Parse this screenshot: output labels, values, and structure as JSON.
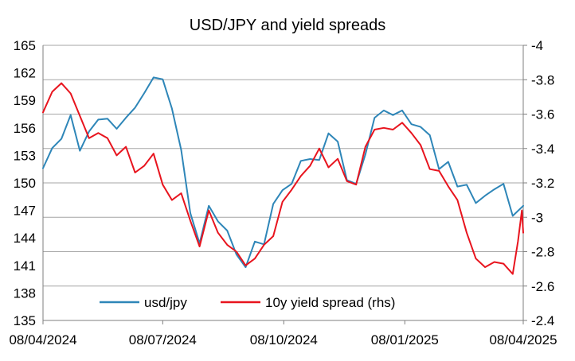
{
  "chart_data": {
    "type": "line",
    "title": "USD/JPY and yield spreads",
    "grid": true,
    "legend_position": "bottom-inside",
    "x_axis": {
      "ticks": [
        "08/04/2024",
        "08/07/2024",
        "08/10/2024",
        "08/01/2025",
        "08/04/2025"
      ],
      "range": [
        "08/04/2024",
        "08/04/2025"
      ]
    },
    "y_left": {
      "ticks": [
        "165",
        "162",
        "159",
        "156",
        "153",
        "150",
        "147",
        "144",
        "141",
        "138",
        "135"
      ],
      "range": [
        135,
        165
      ]
    },
    "y_right": {
      "ticks": [
        "-4",
        "-3.8",
        "-3.6",
        "-3.4",
        "-3.2",
        "-3",
        "-2.8",
        "-2.6",
        "-2.4"
      ],
      "range": [
        -2.4,
        -4
      ]
    },
    "series": [
      {
        "name": "usd/jpy",
        "color": "#2E86B8",
        "axis": "left",
        "points": [
          [
            "08/04/2024",
            151.6
          ],
          [
            "15/04/2024",
            153.8
          ],
          [
            "22/04/2024",
            154.8
          ],
          [
            "29/04/2024",
            157.4
          ],
          [
            "06/05/2024",
            153.5
          ],
          [
            "13/05/2024",
            155.6
          ],
          [
            "20/05/2024",
            156.9
          ],
          [
            "27/05/2024",
            157.0
          ],
          [
            "03/06/2024",
            155.9
          ],
          [
            "10/06/2024",
            157.1
          ],
          [
            "17/06/2024",
            158.2
          ],
          [
            "24/06/2024",
            159.8
          ],
          [
            "01/07/2024",
            161.5
          ],
          [
            "08/07/2024",
            161.3
          ],
          [
            "15/07/2024",
            158.1
          ],
          [
            "22/07/2024",
            153.6
          ],
          [
            "29/07/2024",
            146.7
          ],
          [
            "05/08/2024",
            143.4
          ],
          [
            "12/08/2024",
            147.5
          ],
          [
            "19/08/2024",
            145.8
          ],
          [
            "26/08/2024",
            144.8
          ],
          [
            "02/09/2024",
            142.2
          ],
          [
            "09/09/2024",
            140.8
          ],
          [
            "16/09/2024",
            143.6
          ],
          [
            "23/09/2024",
            143.3
          ],
          [
            "30/09/2024",
            147.7
          ],
          [
            "07/10/2024",
            149.2
          ],
          [
            "14/10/2024",
            149.9
          ],
          [
            "21/10/2024",
            152.4
          ],
          [
            "28/10/2024",
            152.6
          ],
          [
            "04/11/2024",
            152.5
          ],
          [
            "11/11/2024",
            155.4
          ],
          [
            "18/11/2024",
            154.5
          ],
          [
            "25/11/2024",
            150.3
          ],
          [
            "02/12/2024",
            149.9
          ],
          [
            "09/12/2024",
            153.1
          ],
          [
            "16/12/2024",
            157.1
          ],
          [
            "23/12/2024",
            157.9
          ],
          [
            "30/12/2024",
            157.4
          ],
          [
            "06/01/2025",
            157.9
          ],
          [
            "13/01/2025",
            156.4
          ],
          [
            "20/01/2025",
            156.1
          ],
          [
            "27/01/2025",
            155.2
          ],
          [
            "03/02/2025",
            151.5
          ],
          [
            "10/02/2025",
            152.3
          ],
          [
            "17/02/2025",
            149.6
          ],
          [
            "24/02/2025",
            149.8
          ],
          [
            "03/03/2025",
            147.8
          ],
          [
            "10/03/2025",
            148.6
          ],
          [
            "17/03/2025",
            149.3
          ],
          [
            "24/03/2025",
            149.9
          ],
          [
            "31/03/2025",
            146.4
          ],
          [
            "08/04/2025",
            147.5
          ]
        ]
      },
      {
        "name": "10y yield spread (rhs)",
        "color": "#E8141E",
        "axis": "right",
        "points": [
          [
            "08/04/2024",
            -3.61
          ],
          [
            "15/04/2024",
            -3.73
          ],
          [
            "22/04/2024",
            -3.78
          ],
          [
            "29/04/2024",
            -3.72
          ],
          [
            "06/05/2024",
            -3.59
          ],
          [
            "13/05/2024",
            -3.46
          ],
          [
            "20/05/2024",
            -3.49
          ],
          [
            "27/05/2024",
            -3.46
          ],
          [
            "03/06/2024",
            -3.36
          ],
          [
            "10/06/2024",
            -3.41
          ],
          [
            "17/06/2024",
            -3.26
          ],
          [
            "24/06/2024",
            -3.3
          ],
          [
            "01/07/2024",
            -3.37
          ],
          [
            "08/07/2024",
            -3.19
          ],
          [
            "15/07/2024",
            -3.1
          ],
          [
            "22/07/2024",
            -3.14
          ],
          [
            "29/07/2024",
            -2.98
          ],
          [
            "05/08/2024",
            -2.83
          ],
          [
            "12/08/2024",
            -3.04
          ],
          [
            "19/08/2024",
            -2.91
          ],
          [
            "26/08/2024",
            -2.84
          ],
          [
            "02/09/2024",
            -2.8
          ],
          [
            "09/09/2024",
            -2.72
          ],
          [
            "16/09/2024",
            -2.76
          ],
          [
            "23/09/2024",
            -2.84
          ],
          [
            "30/09/2024",
            -2.89
          ],
          [
            "07/10/2024",
            -3.09
          ],
          [
            "14/10/2024",
            -3.16
          ],
          [
            "21/10/2024",
            -3.24
          ],
          [
            "28/10/2024",
            -3.3
          ],
          [
            "04/11/2024",
            -3.4
          ],
          [
            "11/11/2024",
            -3.29
          ],
          [
            "18/11/2024",
            -3.34
          ],
          [
            "25/11/2024",
            -3.21
          ],
          [
            "02/12/2024",
            -3.19
          ],
          [
            "09/12/2024",
            -3.41
          ],
          [
            "16/12/2024",
            -3.51
          ],
          [
            "23/12/2024",
            -3.52
          ],
          [
            "30/12/2024",
            -3.51
          ],
          [
            "06/01/2025",
            -3.55
          ],
          [
            "13/01/2025",
            -3.49
          ],
          [
            "20/01/2025",
            -3.42
          ],
          [
            "27/01/2025",
            -3.28
          ],
          [
            "03/02/2025",
            -3.27
          ],
          [
            "10/02/2025",
            -3.18
          ],
          [
            "17/02/2025",
            -3.1
          ],
          [
            "24/02/2025",
            -2.91
          ],
          [
            "03/03/2025",
            -2.76
          ],
          [
            "10/03/2025",
            -2.71
          ],
          [
            "17/03/2025",
            -2.74
          ],
          [
            "24/03/2025",
            -2.73
          ],
          [
            "31/03/2025",
            -2.67
          ],
          [
            "04/04/2025",
            -2.86
          ],
          [
            "07/04/2025",
            -3.04
          ],
          [
            "08/04/2025",
            -2.91
          ]
        ]
      }
    ]
  }
}
